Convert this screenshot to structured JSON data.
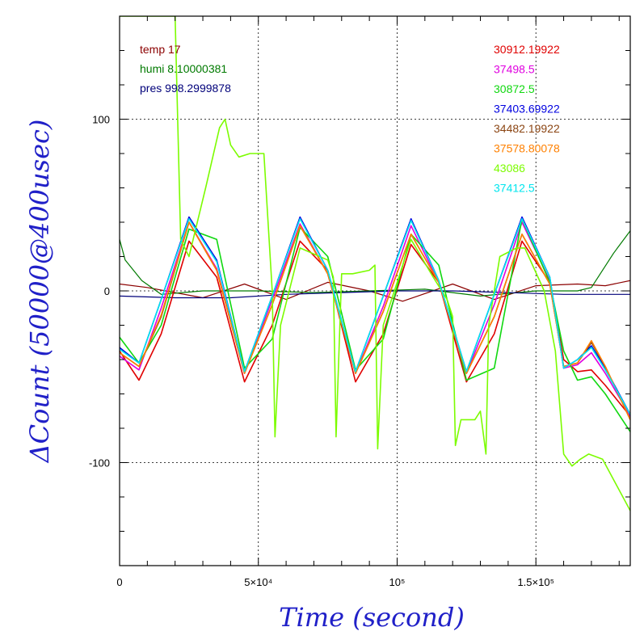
{
  "chart_data": {
    "type": "line",
    "xlabel": "Time (second)",
    "ylabel": "ΔCount (50000@400usec)",
    "xlim": [
      0,
      184000
    ],
    "ylim": [
      -160,
      160
    ],
    "xticks": [
      {
        "value": 0,
        "label": "0"
      },
      {
        "value": 50000,
        "label": "5×10⁴"
      },
      {
        "value": 100000,
        "label": "10⁵"
      },
      {
        "value": 150000,
        "label": "1.5×10⁵"
      }
    ],
    "yticks": [
      {
        "value": 100,
        "label": "100"
      },
      {
        "value": 0,
        "label": "0"
      },
      {
        "value": -100,
        "label": "-100"
      }
    ],
    "grid": true,
    "env_legend": [
      {
        "label": "temp 17",
        "color": "#8b0000"
      },
      {
        "label": "humi 8.10000381",
        "color": "#007a00"
      },
      {
        "label": "pres 998.2999878",
        "color": "#00007a"
      }
    ],
    "series": [
      {
        "name": "30912.19922",
        "color": "#e00000",
        "x": [
          0,
          7000,
          15000,
          25000,
          35000,
          45000,
          55000,
          65000,
          75000,
          85000,
          95000,
          105000,
          115000,
          125000,
          135000,
          145000,
          155000,
          160000,
          165000,
          170000,
          175000,
          184000
        ],
        "y": [
          -35,
          -52,
          -25,
          29,
          8,
          -53,
          -20,
          29,
          12,
          -53,
          -25,
          27,
          5,
          -53,
          -25,
          29,
          5,
          -40,
          -47,
          -46,
          -55,
          -73
        ]
      },
      {
        "name": "37498.5",
        "color": "#e000e0",
        "x": [
          0,
          7000,
          15000,
          25000,
          35000,
          45000,
          55000,
          65000,
          75000,
          85000,
          95000,
          105000,
          115000,
          125000,
          135000,
          145000,
          155000,
          160000,
          165000,
          170000,
          175000,
          184000
        ],
        "y": [
          -38,
          -46,
          -10,
          40,
          13,
          -48,
          -5,
          39,
          10,
          -48,
          -9,
          38,
          5,
          -48,
          -8,
          40,
          6,
          -45,
          -43,
          -36,
          -48,
          -73
        ]
      },
      {
        "name": "30872.5",
        "color": "#10d810",
        "x": [
          0,
          7000,
          15000,
          25000,
          35000,
          45000,
          55000,
          65000,
          75000,
          85000,
          95000,
          105000,
          115000,
          125000,
          135000,
          145000,
          155000,
          160000,
          165000,
          170000,
          175000,
          184000
        ],
        "y": [
          -27,
          -42,
          -20,
          36,
          30,
          -45,
          -28,
          37,
          20,
          -46,
          -28,
          33,
          15,
          -52,
          -45,
          42,
          5,
          -35,
          -52,
          -50,
          -60,
          -82
        ]
      },
      {
        "name": "37403.69922",
        "color": "#0000e0",
        "x": [
          0,
          7000,
          15000,
          25000,
          35000,
          45000,
          55000,
          65000,
          75000,
          85000,
          95000,
          105000,
          115000,
          125000,
          135000,
          145000,
          155000,
          160000,
          165000,
          170000,
          175000,
          184000
        ],
        "y": [
          -33,
          -42,
          -5,
          43,
          18,
          -47,
          -3,
          43,
          12,
          -47,
          -3,
          42,
          6,
          -47,
          -2,
          43,
          8,
          -45,
          -40,
          -32,
          -45,
          -72
        ]
      },
      {
        "name": "34482.19922",
        "color": "#8b4513",
        "x": [
          0,
          7000,
          15000,
          25000,
          35000,
          45000,
          55000,
          65000,
          75000,
          85000,
          95000,
          105000,
          115000,
          125000,
          135000,
          145000,
          155000,
          160000,
          165000,
          170000,
          175000,
          184000
        ],
        "y": [
          -36,
          -44,
          -15,
          40,
          12,
          -48,
          -8,
          38,
          10,
          -48,
          -12,
          33,
          5,
          -48,
          -15,
          33,
          4,
          -44,
          -42,
          -30,
          -44,
          -75
        ]
      },
      {
        "name": "37578.80078",
        "color": "#ff8000",
        "x": [
          0,
          7000,
          15000,
          25000,
          35000,
          45000,
          55000,
          65000,
          75000,
          85000,
          95000,
          105000,
          115000,
          125000,
          135000,
          145000,
          155000,
          160000,
          165000,
          170000,
          175000,
          184000
        ],
        "y": [
          -36,
          -44,
          -14,
          40,
          12,
          -48,
          -8,
          38,
          10,
          -48,
          -12,
          33,
          5,
          -48,
          -15,
          33,
          4,
          -44,
          -42,
          -29,
          -44,
          -75
        ]
      },
      {
        "name": "43086",
        "color": "#7cfc00",
        "x": [
          0,
          20000,
          22000,
          25000,
          28000,
          31000,
          36000,
          38000,
          40000,
          43000,
          47000,
          52000,
          55000,
          56000,
          58000,
          65000,
          75000,
          77000,
          78000,
          80000,
          84000,
          90000,
          92000,
          93000,
          95000,
          105000,
          113000,
          118000,
          120000,
          121000,
          123000,
          128000,
          130000,
          132000,
          133000,
          137000,
          143000,
          146000,
          153000,
          157000,
          160000,
          163000,
          166000,
          169000,
          174000,
          184000
        ],
        "y": [
          160,
          160,
          30,
          20,
          40,
          60,
          95,
          100,
          85,
          78,
          80,
          80,
          0,
          -85,
          -20,
          25,
          18,
          8,
          -85,
          10,
          10,
          12,
          15,
          -92,
          -20,
          30,
          8,
          -5,
          -15,
          -90,
          -75,
          -75,
          -70,
          -95,
          -20,
          20,
          25,
          25,
          0,
          -35,
          -95,
          -102,
          -98,
          -95,
          -98,
          -128
        ]
      },
      {
        "name": "37412.5",
        "color": "#00e5ee",
        "x": [
          0,
          7000,
          15000,
          25000,
          35000,
          45000,
          55000,
          65000,
          75000,
          85000,
          95000,
          105000,
          115000,
          125000,
          135000,
          145000,
          155000,
          160000,
          165000,
          170000,
          175000,
          184000
        ],
        "y": [
          -34,
          -42,
          -5,
          42,
          17,
          -47,
          -3,
          42,
          12,
          -47,
          -3,
          41,
          6,
          -47,
          -2,
          42,
          8,
          -45,
          -40,
          -33,
          -46,
          -72
        ]
      },
      {
        "name": "temp",
        "color": "#8b0000",
        "x": [
          0,
          10000,
          30000,
          45000,
          60000,
          75000,
          90000,
          102000,
          120000,
          135000,
          150000,
          165000,
          175000,
          184000
        ],
        "y": [
          4,
          2,
          -4,
          4,
          -5,
          5,
          0,
          -6,
          4,
          -5,
          3,
          4,
          3,
          6
        ]
      },
      {
        "name": "humi",
        "color": "#007a00",
        "x": [
          0,
          2000,
          8000,
          15000,
          30000,
          50000,
          70000,
          90000,
          110000,
          130000,
          150000,
          165000,
          170000,
          178000,
          184000
        ],
        "y": [
          30,
          18,
          6,
          -2,
          0,
          0,
          -1,
          0,
          1,
          -3,
          0,
          0,
          2,
          22,
          35
        ]
      },
      {
        "name": "pres",
        "color": "#00007a",
        "x": [
          0,
          20000,
          40000,
          60000,
          80000,
          100000,
          120000,
          140000,
          160000,
          184000
        ],
        "y": [
          -3,
          -4,
          -4,
          -2,
          -1,
          0,
          0,
          -1,
          -2,
          -2
        ]
      }
    ]
  }
}
